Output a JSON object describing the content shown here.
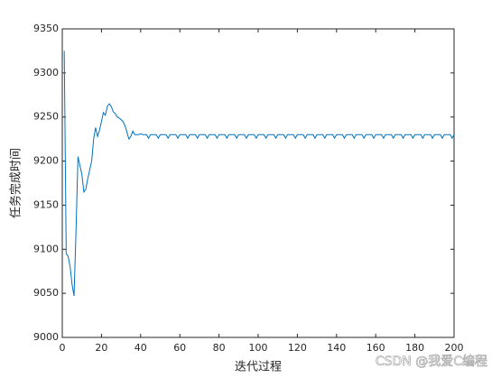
{
  "chart_data": {
    "type": "line",
    "xlabel": "迭代过程",
    "ylabel": "任务完成时间",
    "watermark": "CSDN @我爱C编程",
    "xlim": [
      0,
      200
    ],
    "ylim": [
      9000,
      9350
    ],
    "xticks": [
      0,
      20,
      40,
      60,
      80,
      100,
      120,
      140,
      160,
      180,
      200
    ],
    "yticks": [
      9000,
      9050,
      9100,
      9150,
      9200,
      9250,
      9300,
      9350
    ],
    "x": [
      1,
      2,
      3,
      4,
      5,
      6,
      7,
      8,
      9,
      10,
      11,
      12,
      13,
      14,
      15,
      16,
      17,
      18,
      19,
      20,
      21,
      22,
      23,
      24,
      25,
      26,
      27,
      28,
      29,
      30,
      31,
      32,
      33,
      34,
      35,
      36,
      37,
      38,
      39,
      40,
      41,
      42,
      43,
      44,
      45,
      46,
      47,
      48,
      49,
      50,
      51,
      52,
      53,
      54,
      55,
      56,
      57,
      58,
      59,
      60,
      61,
      62,
      63,
      64,
      65,
      66,
      67,
      68,
      69,
      70,
      71,
      72,
      73,
      74,
      75,
      76,
      77,
      78,
      79,
      80,
      81,
      82,
      83,
      84,
      85,
      86,
      87,
      88,
      89,
      90,
      91,
      92,
      93,
      94,
      95,
      96,
      97,
      98,
      99,
      100,
      101,
      102,
      103,
      104,
      105,
      106,
      107,
      108,
      109,
      110,
      111,
      112,
      113,
      114,
      115,
      116,
      117,
      118,
      119,
      120,
      121,
      122,
      123,
      124,
      125,
      126,
      127,
      128,
      129,
      130,
      131,
      132,
      133,
      134,
      135,
      136,
      137,
      138,
      139,
      140,
      141,
      142,
      143,
      144,
      145,
      146,
      147,
      148,
      149,
      150,
      151,
      152,
      153,
      154,
      155,
      156,
      157,
      158,
      159,
      160,
      161,
      162,
      163,
      164,
      165,
      166,
      167,
      168,
      169,
      170,
      171,
      172,
      173,
      174,
      175,
      176,
      177,
      178,
      179,
      180,
      181,
      182,
      183,
      184,
      185,
      186,
      187,
      188,
      189,
      190,
      191,
      192,
      193,
      194,
      195,
      196,
      197,
      198,
      199,
      200
    ],
    "series": [
      {
        "color": "#0072bd",
        "values": [
          9325,
          9095,
          9092,
          9080,
          9060,
          9047,
          9120,
          9205,
          9195,
          9185,
          9165,
          9168,
          9180,
          9190,
          9200,
          9225,
          9238,
          9228,
          9235,
          9245,
          9255,
          9252,
          9262,
          9265,
          9262,
          9256,
          9254,
          9250,
          9249,
          9247,
          9245,
          9240,
          9233,
          9225,
          9228,
          9234,
          9230,
          9230,
          9230,
          9231,
          9230,
          9230,
          9230,
          9226,
          9230,
          9230,
          9230,
          9230,
          9226,
          9230,
          9230,
          9230,
          9230,
          9226,
          9230,
          9230,
          9230,
          9230,
          9226,
          9230,
          9230,
          9230,
          9230,
          9226,
          9230,
          9230,
          9230,
          9230,
          9226,
          9230,
          9230,
          9230,
          9230,
          9226,
          9230,
          9230,
          9230,
          9230,
          9226,
          9230,
          9230,
          9230,
          9230,
          9226,
          9230,
          9230,
          9230,
          9230,
          9226,
          9230,
          9230,
          9230,
          9230,
          9226,
          9230,
          9230,
          9230,
          9230,
          9226,
          9230,
          9230,
          9230,
          9230,
          9226,
          9230,
          9230,
          9230,
          9230,
          9226,
          9230,
          9230,
          9230,
          9230,
          9226,
          9230,
          9230,
          9230,
          9230,
          9226,
          9230,
          9230,
          9230,
          9230,
          9226,
          9230,
          9230,
          9230,
          9230,
          9226,
          9230,
          9230,
          9230,
          9230,
          9226,
          9230,
          9230,
          9230,
          9230,
          9226,
          9230,
          9230,
          9230,
          9230,
          9226,
          9230,
          9230,
          9230,
          9230,
          9226,
          9230,
          9230,
          9230,
          9230,
          9226,
          9230,
          9230,
          9230,
          9230,
          9226,
          9230,
          9230,
          9230,
          9230,
          9226,
          9230,
          9230,
          9230,
          9230,
          9226,
          9230,
          9230,
          9230,
          9230,
          9226,
          9230,
          9230,
          9230,
          9230,
          9226,
          9230,
          9230,
          9230,
          9230,
          9226,
          9230,
          9230,
          9230,
          9230,
          9226,
          9230,
          9230,
          9230,
          9230,
          9226,
          9230,
          9230,
          9230,
          9230,
          9226,
          9230
        ]
      }
    ]
  }
}
